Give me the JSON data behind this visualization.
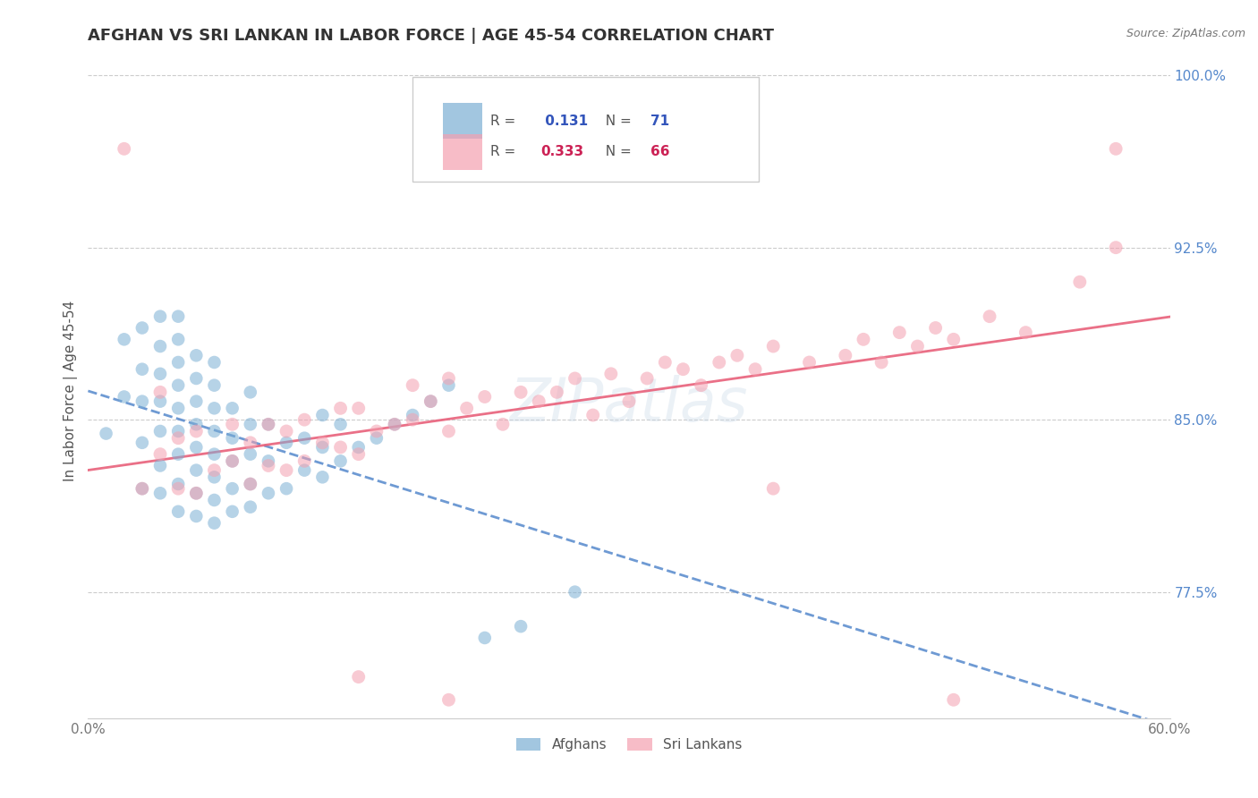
{
  "title": "AFGHAN VS SRI LANKAN IN LABOR FORCE | AGE 45-54 CORRELATION CHART",
  "source_text": "Source: ZipAtlas.com",
  "ylabel": "In Labor Force | Age 45-54",
  "xlim": [
    0.0,
    0.6
  ],
  "ylim": [
    0.72,
    1.005
  ],
  "xticks": [
    0.0,
    0.1,
    0.2,
    0.3,
    0.4,
    0.5,
    0.6
  ],
  "xticklabels": [
    "0.0%",
    "",
    "",
    "",
    "",
    "",
    "60.0%"
  ],
  "yticks": [
    0.775,
    0.85,
    0.925,
    1.0
  ],
  "yticklabels": [
    "77.5%",
    "85.0%",
    "92.5%",
    "100.0%"
  ],
  "afghan_R": 0.131,
  "afghan_N": 71,
  "srilankan_R": 0.333,
  "srilankan_N": 66,
  "afghan_color": "#7bafd4",
  "srilankan_color": "#f4a0b0",
  "trend_afghan_color": "#5588cc",
  "trend_srilankan_color": "#e8607a",
  "background_color": "#ffffff",
  "title_fontsize": 13,
  "label_fontsize": 11,
  "tick_fontsize": 11,
  "watermark_text": "ZIPatlas",
  "legend_R_color_afghan": "#3355bb",
  "legend_N_color_afghan": "#3355bb",
  "legend_R_color_sri": "#cc2255",
  "legend_N_color_sri": "#cc2255",
  "afghan_x": [
    0.01,
    0.02,
    0.02,
    0.03,
    0.03,
    0.03,
    0.03,
    0.03,
    0.04,
    0.04,
    0.04,
    0.04,
    0.04,
    0.04,
    0.04,
    0.05,
    0.05,
    0.05,
    0.05,
    0.05,
    0.05,
    0.05,
    0.05,
    0.05,
    0.06,
    0.06,
    0.06,
    0.06,
    0.06,
    0.06,
    0.06,
    0.06,
    0.07,
    0.07,
    0.07,
    0.07,
    0.07,
    0.07,
    0.07,
    0.07,
    0.08,
    0.08,
    0.08,
    0.08,
    0.08,
    0.09,
    0.09,
    0.09,
    0.09,
    0.09,
    0.1,
    0.1,
    0.1,
    0.11,
    0.11,
    0.12,
    0.12,
    0.13,
    0.13,
    0.13,
    0.14,
    0.14,
    0.15,
    0.16,
    0.17,
    0.18,
    0.19,
    0.2,
    0.22,
    0.24,
    0.27
  ],
  "afghan_y": [
    0.844,
    0.86,
    0.885,
    0.82,
    0.84,
    0.858,
    0.872,
    0.89,
    0.818,
    0.83,
    0.845,
    0.858,
    0.87,
    0.882,
    0.895,
    0.81,
    0.822,
    0.835,
    0.845,
    0.855,
    0.865,
    0.875,
    0.885,
    0.895,
    0.808,
    0.818,
    0.828,
    0.838,
    0.848,
    0.858,
    0.868,
    0.878,
    0.805,
    0.815,
    0.825,
    0.835,
    0.845,
    0.855,
    0.865,
    0.875,
    0.81,
    0.82,
    0.832,
    0.842,
    0.855,
    0.812,
    0.822,
    0.835,
    0.848,
    0.862,
    0.818,
    0.832,
    0.848,
    0.82,
    0.84,
    0.828,
    0.842,
    0.825,
    0.838,
    0.852,
    0.832,
    0.848,
    0.838,
    0.842,
    0.848,
    0.852,
    0.858,
    0.865,
    0.755,
    0.76,
    0.775
  ],
  "srilankan_x": [
    0.02,
    0.03,
    0.04,
    0.04,
    0.05,
    0.05,
    0.06,
    0.06,
    0.07,
    0.08,
    0.08,
    0.09,
    0.09,
    0.1,
    0.1,
    0.11,
    0.11,
    0.12,
    0.12,
    0.13,
    0.14,
    0.14,
    0.15,
    0.15,
    0.16,
    0.17,
    0.18,
    0.18,
    0.19,
    0.2,
    0.2,
    0.21,
    0.22,
    0.23,
    0.24,
    0.25,
    0.26,
    0.27,
    0.28,
    0.29,
    0.3,
    0.31,
    0.32,
    0.33,
    0.34,
    0.35,
    0.36,
    0.37,
    0.38,
    0.4,
    0.42,
    0.43,
    0.44,
    0.45,
    0.46,
    0.47,
    0.48,
    0.5,
    0.52,
    0.55,
    0.57,
    0.57,
    0.15,
    0.2,
    0.38,
    0.48
  ],
  "srilankan_y": [
    0.968,
    0.82,
    0.835,
    0.862,
    0.82,
    0.842,
    0.818,
    0.845,
    0.828,
    0.832,
    0.848,
    0.822,
    0.84,
    0.83,
    0.848,
    0.828,
    0.845,
    0.832,
    0.85,
    0.84,
    0.838,
    0.855,
    0.835,
    0.855,
    0.845,
    0.848,
    0.85,
    0.865,
    0.858,
    0.845,
    0.868,
    0.855,
    0.86,
    0.848,
    0.862,
    0.858,
    0.862,
    0.868,
    0.852,
    0.87,
    0.858,
    0.868,
    0.875,
    0.872,
    0.865,
    0.875,
    0.878,
    0.872,
    0.882,
    0.875,
    0.878,
    0.885,
    0.875,
    0.888,
    0.882,
    0.89,
    0.885,
    0.895,
    0.888,
    0.91,
    0.925,
    0.968,
    0.738,
    0.728,
    0.82,
    0.728
  ]
}
